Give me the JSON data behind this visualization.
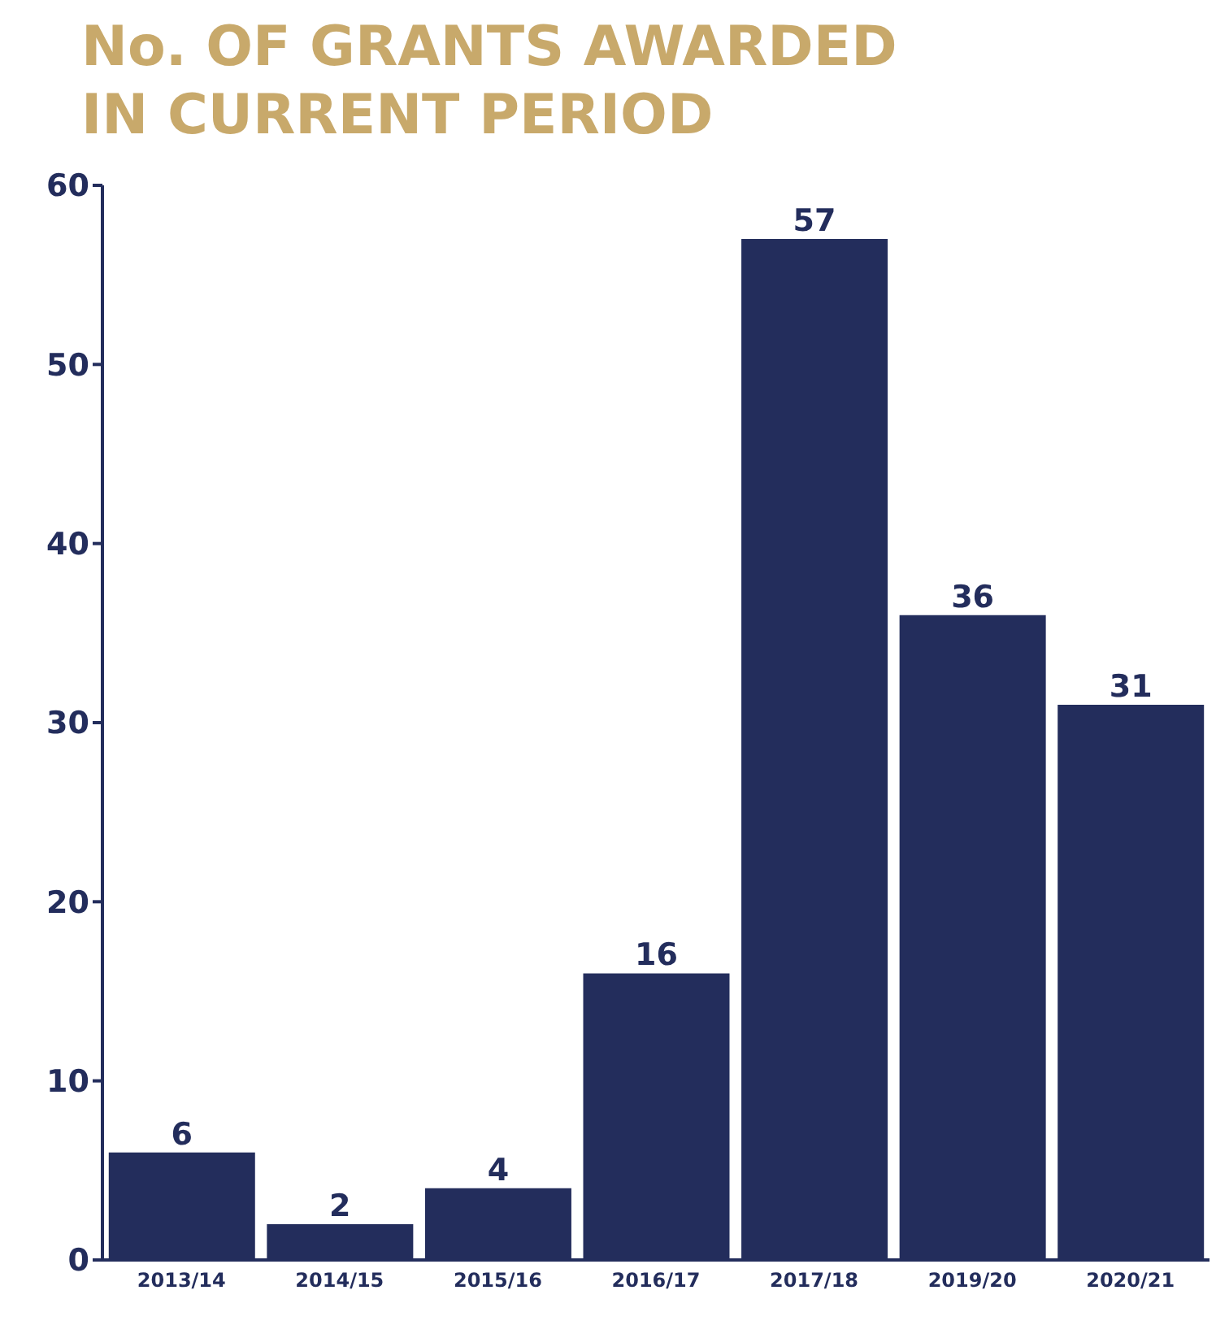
{
  "chart_data": {
    "type": "bar",
    "title": "No. OF GRANTS AWARDED IN CURRENT PERIOD",
    "categories": [
      "2013/14",
      "2014/15",
      "2015/16",
      "2016/17",
      "2017/18",
      "2019/20",
      "2020/21"
    ],
    "values": [
      6,
      2,
      4,
      16,
      57,
      36,
      31
    ],
    "color": "#232d5c",
    "ylim": [
      0,
      60
    ],
    "yticks": [
      0,
      10,
      20,
      30,
      40,
      50,
      60
    ],
    "data_labels": true
  }
}
